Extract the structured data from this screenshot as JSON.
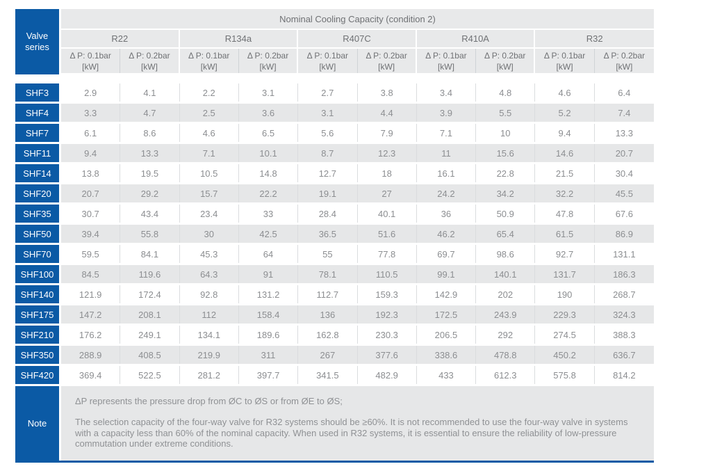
{
  "header": {
    "corner_label": "Valve series",
    "title": "Nominal Cooling Capacity (condition 2)",
    "refrigerants": [
      "R22",
      "R134a",
      "R407C",
      "R410A",
      "R32"
    ],
    "subcols": [
      "Δ P: 0.1bar",
      "Δ P: 0.2bar"
    ],
    "unit": "[kW]"
  },
  "table": {
    "rows": [
      {
        "series": "SHF3",
        "values": [
          "2.9",
          "4.1",
          "2.2",
          "3.1",
          "2.7",
          "3.8",
          "3.4",
          "4.8",
          "4.6",
          "6.4"
        ]
      },
      {
        "series": "SHF4",
        "values": [
          "3.3",
          "4.7",
          "2.5",
          "3.6",
          "3.1",
          "4.4",
          "3.9",
          "5.5",
          "5.2",
          "7.4"
        ]
      },
      {
        "series": "SHF7",
        "values": [
          "6.1",
          "8.6",
          "4.6",
          "6.5",
          "5.6",
          "7.9",
          "7.1",
          "10",
          "9.4",
          "13.3"
        ]
      },
      {
        "series": "SHF11",
        "values": [
          "9.4",
          "13.3",
          "7.1",
          "10.1",
          "8.7",
          "12.3",
          "11",
          "15.6",
          "14.6",
          "20.7"
        ]
      },
      {
        "series": "SHF14",
        "values": [
          "13.8",
          "19.5",
          "10.5",
          "14.8",
          "12.7",
          "18",
          "16.1",
          "22.8",
          "21.5",
          "30.4"
        ]
      },
      {
        "series": "SHF20",
        "values": [
          "20.7",
          "29.2",
          "15.7",
          "22.2",
          "19.1",
          "27",
          "24.2",
          "34.2",
          "32.2",
          "45.5"
        ]
      },
      {
        "series": "SHF35",
        "values": [
          "30.7",
          "43.4",
          "23.4",
          "33",
          "28.4",
          "40.1",
          "36",
          "50.9",
          "47.8",
          "67.6"
        ]
      },
      {
        "series": "SHF50",
        "values": [
          "39.4",
          "55.8",
          "30",
          "42.5",
          "36.5",
          "51.6",
          "46.2",
          "65.4",
          "61.5",
          "86.9"
        ]
      },
      {
        "series": "SHF70",
        "values": [
          "59.5",
          "84.1",
          "45.3",
          "64",
          "55",
          "77.8",
          "69.7",
          "98.6",
          "92.7",
          "131.1"
        ]
      },
      {
        "series": "SHF100",
        "values": [
          "84.5",
          "119.6",
          "64.3",
          "91",
          "78.1",
          "110.5",
          "99.1",
          "140.1",
          "131.7",
          "186.3"
        ]
      },
      {
        "series": "SHF140",
        "values": [
          "121.9",
          "172.4",
          "92.8",
          "131.2",
          "112.7",
          "159.3",
          "142.9",
          "202",
          "190",
          "268.7"
        ]
      },
      {
        "series": "SHF175",
        "values": [
          "147.2",
          "208.1",
          "112",
          "158.4",
          "136",
          "192.3",
          "172.5",
          "243.9",
          "229.3",
          "324.3"
        ]
      },
      {
        "series": "SHF210",
        "values": [
          "176.2",
          "249.1",
          "134.1",
          "189.6",
          "162.8",
          "230.3",
          "206.5",
          "292",
          "274.5",
          "388.3"
        ]
      },
      {
        "series": "SHF350",
        "values": [
          "288.9",
          "408.5",
          "219.9",
          "311",
          "267",
          "377.6",
          "338.6",
          "478.8",
          "450.2",
          "636.7"
        ]
      },
      {
        "series": "SHF420",
        "values": [
          "369.4",
          "522.5",
          "281.2",
          "397.7",
          "341.5",
          "482.9",
          "433",
          "612.3",
          "575.8",
          "814.2"
        ]
      }
    ]
  },
  "note": {
    "label": "Note",
    "line1": "ΔP represents the pressure drop from ØC to ØS or from ØE to ØS;",
    "body": "The selection capacity of the four-way valve for R32 systems should be ≥60%. It is not recommended to use the four-way valve in systems with a capacity less than 60% of the nominal capacity. When used in R32 systems, it is essential to ensure the reliability of low-pressure commutation under extreme conditions."
  },
  "colors": {
    "brand_blue": "#0b5aa5",
    "header_gray": "#e8e9ea",
    "stripe_gray": "#e6e7e8",
    "header_text": "#6f7174",
    "data_text": "#8c8e91"
  }
}
